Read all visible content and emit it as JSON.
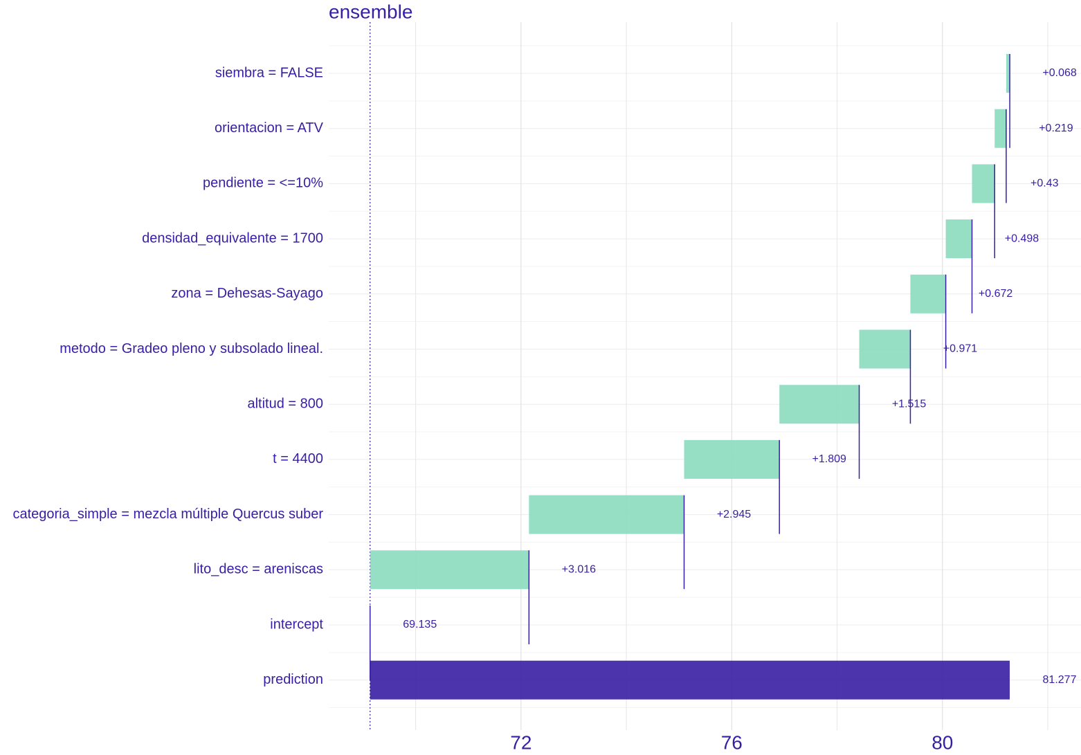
{
  "chart_data": {
    "type": "waterfall",
    "title": "ensemble",
    "categories": [
      "siembra = FALSE",
      "orientacion = ATV",
      "pendiente = <=10%",
      "densidad_equivalente = 1700",
      "zona = Dehesas-Sayago",
      "metodo = Gradeo pleno y subsolado lineal.",
      "altitud = 800",
      "t = 4400",
      "categoria_simple = mezcla múltiple Quercus suber",
      "lito_desc = areniscas",
      "intercept",
      "prediction"
    ],
    "values": [
      0.068,
      0.219,
      0.43,
      0.498,
      0.672,
      0.971,
      1.515,
      1.809,
      2.945,
      3.016,
      69.135,
      81.277
    ],
    "value_labels": [
      "+0.068",
      "+0.219",
      "+0.43",
      "+0.498",
      "+0.672",
      "+0.971",
      "+1.515",
      "+1.809",
      "+2.945",
      "+3.016",
      "69.135",
      "81.277"
    ],
    "colors": {
      "positive": "#8bdcbe",
      "total": "#371ea3",
      "text": "#371ea3"
    },
    "xlim": [
      68.35,
      82.63
    ],
    "xticks": [
      72,
      76,
      80
    ],
    "xminorticks": [
      70,
      74,
      78,
      82
    ],
    "grid": true
  }
}
